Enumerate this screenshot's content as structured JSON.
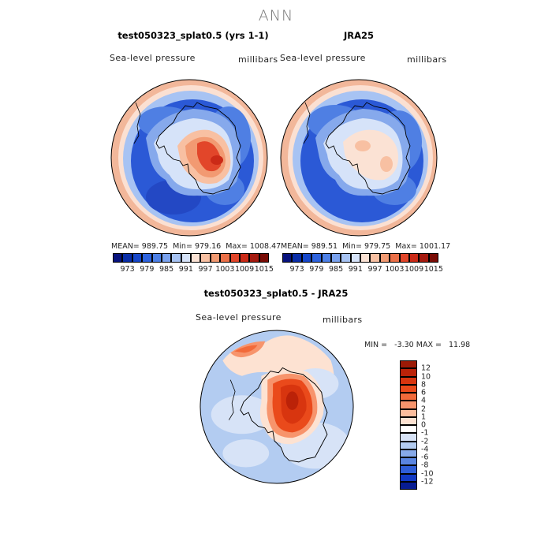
{
  "season": "ANN",
  "panels": [
    {
      "title": "test050323_splat0.5 (yrs 1-1)",
      "variable": "Sea-level pressure",
      "units": "millibars",
      "stats": {
        "mean_label": "MEAN=",
        "mean": "989.75",
        "min_label": "Min=",
        "min": "979.16",
        "max_label": "Max=",
        "max": "1008.47"
      }
    },
    {
      "title": "JRA25",
      "variable": "Sea-level pressure",
      "units": "millibars",
      "stats": {
        "mean_label": "MEAN=",
        "mean": "989.51",
        "min_label": "Min=",
        "min": "979.75",
        "max_label": "Max=",
        "max": "1001.17"
      }
    }
  ],
  "diff_panel": {
    "title": "test050323_splat0.5 - JRA25",
    "variable": "Sea-level pressure",
    "units": "millibars",
    "stats_text": "MIN =   -3.30 MAX =   11.98"
  },
  "colorbar_main": {
    "labels": [
      "973",
      "979",
      "985",
      "991",
      "997",
      "1003",
      "1009",
      "1015"
    ],
    "colors": [
      "#08137e",
      "#0a2ea8",
      "#1747c9",
      "#2e63de",
      "#4d80e6",
      "#7aa2ee",
      "#a7c3f3",
      "#d6e3f9",
      "#fbe2d4",
      "#f8c0a2",
      "#f29a72",
      "#eb7048",
      "#e2462a",
      "#cb2a17",
      "#a51a0f",
      "#7a0c06"
    ]
  },
  "colorbar_diff": {
    "labels": [
      "12",
      "10",
      "8",
      "6",
      "4",
      "2",
      "1",
      "0",
      "-1",
      "-2",
      "-4",
      "-6",
      "-8",
      "-10",
      "-12"
    ],
    "colors": [
      "#9c1a06",
      "#bb2208",
      "#d8350f",
      "#ea4a1b",
      "#f26a3a",
      "#f7946c",
      "#fbbd9d",
      "#fde2d2",
      "#ffffff",
      "#d7e3f7",
      "#b3ccf1",
      "#86a9e9",
      "#5a85e1",
      "#2f5ed8",
      "#1139c4",
      "#071c92"
    ]
  },
  "map_colors": {
    "deep_low": "#2b59d6",
    "low": "#4f7fe3",
    "mid_low": "#86a9ec",
    "light_low": "#bfd3f5",
    "near": "#e4ecfa",
    "light_high": "#fbd9c6",
    "mid_high": "#f5a98a",
    "high": "#ea6a44",
    "peak": "#d2381d",
    "coast": "#000000"
  }
}
